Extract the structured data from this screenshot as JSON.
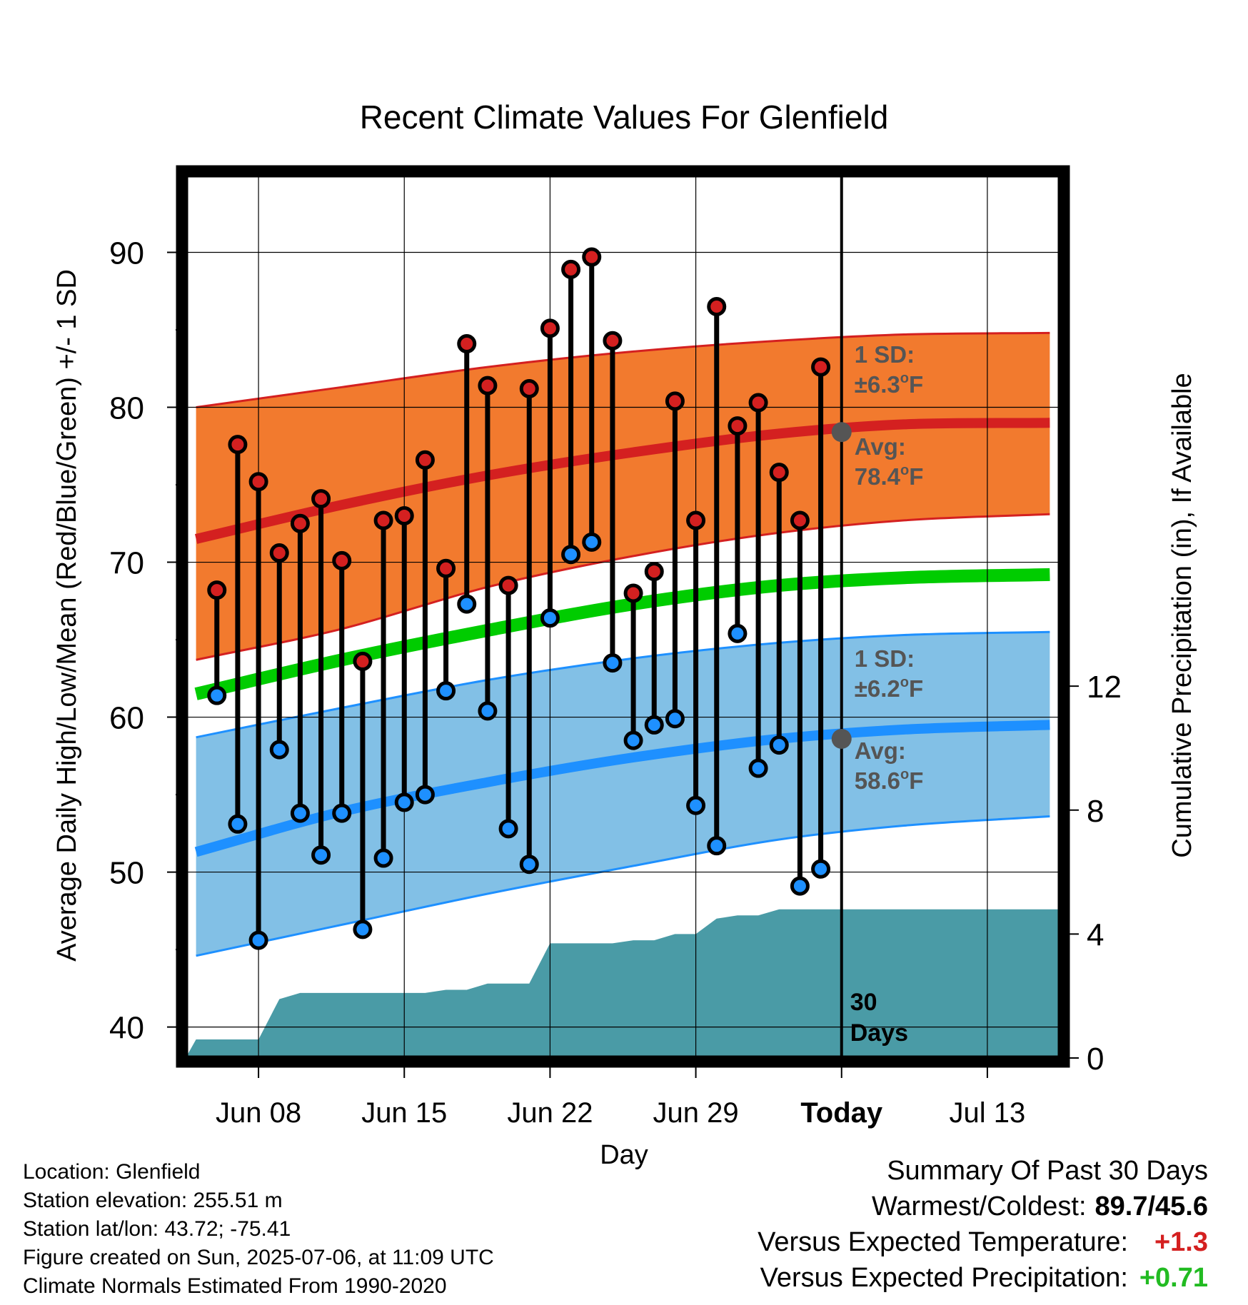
{
  "chart_data": {
    "type": "line",
    "title": "Recent Climate Values For Glenfield",
    "xlabel": "Day",
    "ylabel": "Average Daily High/Low/Mean (Red/Blue/Green) +/- 1 SD",
    "y2label": "Cumulative Precipitation (in), If Available",
    "x_tick_labels": [
      "Jun 08",
      "Jun 15",
      "Jun 22",
      "Jun 29",
      "Today",
      "Jul 13"
    ],
    "x_tick_dates": [
      "2025-06-08",
      "2025-06-15",
      "2025-06-22",
      "2025-06-29",
      "2025-07-06",
      "2025-07-13"
    ],
    "xlim": [
      "2025-06-04 12:00",
      "2025-07-16 12:00"
    ],
    "ylim": [
      38,
      95
    ],
    "y_ticks": [
      40,
      50,
      60,
      70,
      80,
      90
    ],
    "y2lim": [
      0,
      28.5
    ],
    "y2_ticks": [
      0,
      4,
      8,
      12
    ],
    "grid": true,
    "today_marker": {
      "date": "2025-07-06",
      "label": "30 Days"
    },
    "normals": {
      "dates": [
        "2025-06-05",
        "2025-06-12",
        "2025-06-19",
        "2025-06-26",
        "2025-07-03",
        "2025-07-09",
        "2025-07-16"
      ],
      "high_avg": [
        71.5,
        73.7,
        75.6,
        77.1,
        78.3,
        78.9,
        79.0
      ],
      "high_upper": [
        80.0,
        81.3,
        82.6,
        83.6,
        84.3,
        84.7,
        84.8
      ],
      "high_lower": [
        63.7,
        65.7,
        68.4,
        70.4,
        71.9,
        72.7,
        73.1
      ],
      "mean_avg": [
        61.5,
        63.7,
        65.6,
        67.3,
        68.5,
        69.0,
        69.2
      ],
      "low_avg": [
        51.3,
        53.9,
        55.8,
        57.4,
        58.6,
        59.2,
        59.5
      ],
      "low_upper": [
        58.7,
        60.6,
        62.4,
        63.8,
        64.8,
        65.3,
        65.5
      ],
      "low_lower": [
        44.6,
        46.6,
        48.6,
        50.4,
        52.1,
        53.0,
        53.6
      ]
    },
    "daily": {
      "dates": [
        "2025-06-06",
        "2025-06-07",
        "2025-06-08",
        "2025-06-09",
        "2025-06-10",
        "2025-06-11",
        "2025-06-12",
        "2025-06-13",
        "2025-06-14",
        "2025-06-15",
        "2025-06-16",
        "2025-06-17",
        "2025-06-18",
        "2025-06-19",
        "2025-06-20",
        "2025-06-21",
        "2025-06-22",
        "2025-06-23",
        "2025-06-24",
        "2025-06-25",
        "2025-06-26",
        "2025-06-27",
        "2025-06-28",
        "2025-06-29",
        "2025-06-30",
        "2025-07-01",
        "2025-07-02",
        "2025-07-03",
        "2025-07-04",
        "2025-07-05"
      ],
      "high": [
        68.2,
        77.6,
        75.2,
        70.6,
        72.5,
        74.1,
        70.1,
        63.6,
        72.7,
        73.0,
        76.6,
        69.6,
        84.1,
        81.4,
        68.5,
        81.2,
        85.1,
        88.9,
        89.7,
        84.3,
        68.0,
        69.4,
        80.4,
        72.7,
        86.5,
        78.8,
        80.3,
        75.8,
        72.7,
        82.6
      ],
      "low": [
        61.4,
        53.1,
        45.6,
        57.9,
        53.8,
        51.1,
        53.8,
        46.3,
        50.9,
        54.5,
        55.0,
        61.7,
        67.3,
        60.4,
        52.8,
        50.5,
        66.4,
        70.5,
        71.3,
        63.5,
        58.5,
        59.5,
        59.9,
        54.3,
        51.7,
        65.4,
        56.7,
        58.2,
        49.1,
        50.2
      ]
    },
    "precip_cumulative": {
      "dates": [
        "2025-06-04 12:00",
        "2025-06-05",
        "2025-06-06",
        "2025-06-07",
        "2025-06-08",
        "2025-06-09",
        "2025-06-10",
        "2025-06-11",
        "2025-06-12",
        "2025-06-13",
        "2025-06-14",
        "2025-06-15",
        "2025-06-16",
        "2025-06-17",
        "2025-06-18",
        "2025-06-19",
        "2025-06-20",
        "2025-06-21",
        "2025-06-22",
        "2025-06-23",
        "2025-06-24",
        "2025-06-25",
        "2025-06-26",
        "2025-06-27",
        "2025-06-28",
        "2025-06-29",
        "2025-06-30",
        "2025-07-01",
        "2025-07-02",
        "2025-07-03",
        "2025-07-04",
        "2025-07-16 12:00"
      ],
      "values": [
        0.0,
        0.6,
        0.6,
        0.6,
        0.6,
        1.9,
        2.1,
        2.1,
        2.1,
        2.1,
        2.1,
        2.1,
        2.1,
        2.2,
        2.2,
        2.4,
        2.4,
        2.4,
        3.7,
        3.7,
        3.7,
        3.7,
        3.8,
        3.8,
        4.0,
        4.0,
        4.5,
        4.6,
        4.6,
        4.8,
        4.8,
        4.8
      ]
    },
    "annotations": [
      {
        "label": "1 SD:",
        "value": "±6.3",
        "unit": "F",
        "series": "high"
      },
      {
        "label": "Avg:",
        "value": "78.4",
        "unit": "F",
        "series": "high"
      },
      {
        "label": "1 SD:",
        "value": "±6.2",
        "unit": "F",
        "series": "low"
      },
      {
        "label": "Avg:",
        "value": "58.6",
        "unit": "F",
        "series": "low"
      }
    ],
    "colors": {
      "high_band": "#f27a2e",
      "high_line": "#d42020",
      "mean_line": "#00cc00",
      "low_band": "#82c0e6",
      "low_line": "#1e90ff",
      "precip": "#4a9ba6",
      "annotation": "#555555",
      "high_dot": "#d42020",
      "low_dot": "#1e90ff"
    }
  },
  "info": {
    "location": "Location: Glenfield",
    "elevation": "Station elevation: 255.51 m",
    "latlon": "Station lat/lon: 43.72; -75.41",
    "created": "Figure created on Sun, 2025-07-06, at 11:09 UTC",
    "normals": "Climate Normals Estimated From 1990-2020"
  },
  "summary": {
    "title": "Summary Of Past 30 Days",
    "warmest_label": "Warmest/Coldest:",
    "warmest_value": "89.7/45.6",
    "temp_label": "Versus Expected Temperature:",
    "temp_value": "+1.3",
    "temp_color": "#d42020",
    "precip_label": "Versus Expected Precipitation:",
    "precip_value": "+0.71",
    "precip_color": "#22bb22"
  }
}
